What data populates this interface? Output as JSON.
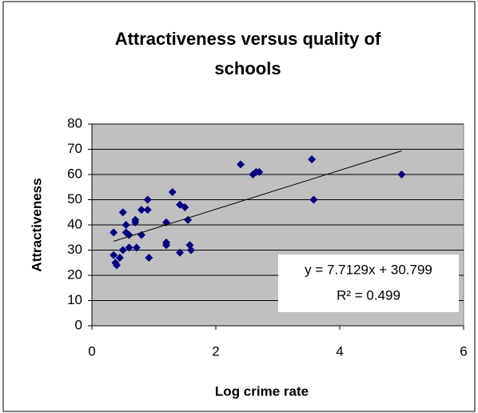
{
  "chart_data": {
    "type": "scatter",
    "title": [
      "Attractiveness versus quality of",
      "schools"
    ],
    "xlabel": "Log crime rate",
    "ylabel": "Attractiveness",
    "color": "#000080",
    "background": "#c0c0c0",
    "grid": true,
    "xlim": [
      0,
      6
    ],
    "ylim": [
      0,
      80
    ],
    "xticks": [
      0,
      2,
      4,
      6
    ],
    "yticks": [
      0,
      10,
      20,
      30,
      40,
      50,
      60,
      70,
      80
    ],
    "x": [
      0.35,
      0.35,
      0.38,
      0.4,
      0.45,
      0.5,
      0.5,
      0.55,
      0.55,
      0.6,
      0.6,
      0.7,
      0.7,
      0.72,
      0.8,
      0.8,
      0.9,
      0.9,
      0.92,
      1.2,
      1.2,
      1.2,
      1.3,
      1.42,
      1.42,
      1.5,
      1.55,
      1.58,
      1.6,
      2.4,
      2.6,
      2.65,
      2.7,
      3.55,
      3.58,
      5
    ],
    "values": [
      37,
      28,
      25,
      24,
      27,
      45,
      30,
      40,
      37,
      36,
      31,
      42,
      41,
      31,
      46,
      36,
      50,
      46,
      27,
      41,
      33,
      32,
      53,
      48,
      29,
      47,
      42,
      32,
      30,
      64,
      60,
      61,
      61,
      66,
      50,
      60
    ],
    "trendline": {
      "slope": 7.7129,
      "intercept": 30.799,
      "x": [
        0.35,
        5
      ],
      "color": "#000000"
    },
    "annotations": [
      "y = 7.7129x + 30.799",
      "R² = 0.499"
    ]
  }
}
